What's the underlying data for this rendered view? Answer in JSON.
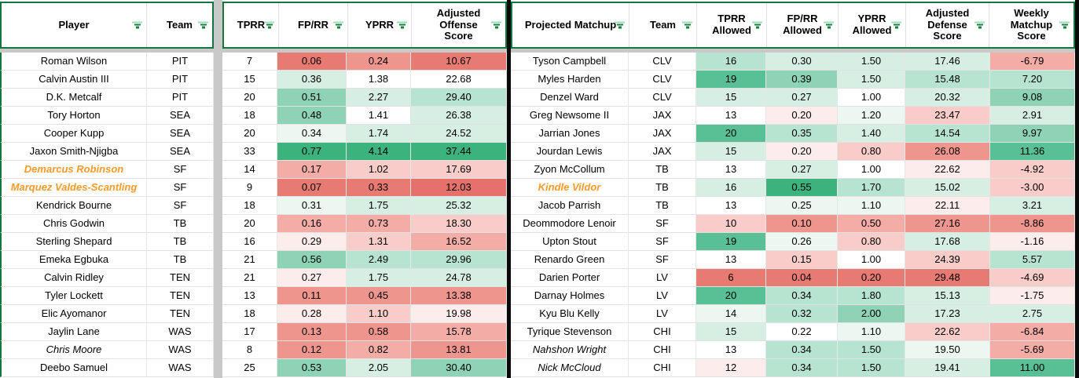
{
  "palette": {
    "R5d": "#e4716a",
    "R5": "#e87b71",
    "R4": "#ee968e",
    "R3": "#f3ada6",
    "R2": "#f8cdc9",
    "R1": "#fceceb",
    "W": "#ffffff",
    "G1": "#edf7f2",
    "G2": "#d7efe3",
    "G3": "#b7e4d0",
    "G4": "#8ed3b5",
    "G5": "#58c094",
    "G6": "#3cb27d",
    "orange_player": "#f79a28",
    "header_border_green": "#15753c",
    "filter_icon_green": "#17813f",
    "black_divider": "#0a0a0a"
  },
  "left_table": {
    "headers": [
      {
        "label": "Player"
      },
      {
        "label": "Team"
      },
      {
        "label": "TPRR"
      },
      {
        "label": "FP/RR"
      },
      {
        "label": "YPRR"
      },
      {
        "label": "Adjusted Offense Score"
      }
    ],
    "rows": [
      {
        "player": "Roman Wilson",
        "style": "normal",
        "team": "PIT",
        "tprr": "7",
        "fprr": {
          "v": "0.06",
          "c": "R5"
        },
        "yprr": {
          "v": "0.24",
          "c": "R4"
        },
        "adj": {
          "v": "10.67",
          "c": "R5"
        }
      },
      {
        "player": "Calvin Austin III",
        "style": "normal",
        "team": "PIT",
        "tprr": "15",
        "fprr": {
          "v": "0.36",
          "c": "G2"
        },
        "yprr": {
          "v": "1.38",
          "c": "W"
        },
        "adj": {
          "v": "22.68",
          "c": "W"
        }
      },
      {
        "player": "D.K. Metcalf",
        "style": "normal",
        "team": "PIT",
        "tprr": "20",
        "fprr": {
          "v": "0.51",
          "c": "G4"
        },
        "yprr": {
          "v": "2.27",
          "c": "G2"
        },
        "adj": {
          "v": "29.40",
          "c": "G3"
        }
      },
      {
        "player": "Tory Horton",
        "style": "normal",
        "team": "SEA",
        "tprr": "18",
        "fprr": {
          "v": "0.48",
          "c": "G4"
        },
        "yprr": {
          "v": "1.41",
          "c": "W"
        },
        "adj": {
          "v": "26.38",
          "c": "G2"
        }
      },
      {
        "player": "Cooper Kupp",
        "style": "normal",
        "team": "SEA",
        "tprr": "20",
        "fprr": {
          "v": "0.34",
          "c": "G1"
        },
        "yprr": {
          "v": "1.74",
          "c": "G2"
        },
        "adj": {
          "v": "24.52",
          "c": "G2"
        }
      },
      {
        "player": "Jaxon Smith-Njigba",
        "style": "normal",
        "team": "SEA",
        "tprr": "33",
        "fprr": {
          "v": "0.77",
          "c": "G6"
        },
        "yprr": {
          "v": "4.14",
          "c": "G6"
        },
        "adj": {
          "v": "37.44",
          "c": "G6"
        }
      },
      {
        "player": "Demarcus Robinson",
        "style": "orange",
        "team": "SF",
        "tprr": "14",
        "fprr": {
          "v": "0.17",
          "c": "R3"
        },
        "yprr": {
          "v": "1.02",
          "c": "R2"
        },
        "adj": {
          "v": "17.69",
          "c": "R2"
        }
      },
      {
        "player": "Marquez Valdes-Scantling",
        "style": "orange",
        "team": "SF",
        "tprr": "9",
        "fprr": {
          "v": "0.07",
          "c": "R5"
        },
        "yprr": {
          "v": "0.33",
          "c": "R5"
        },
        "adj": {
          "v": "12.03",
          "c": "R5d"
        }
      },
      {
        "player": "Kendrick Bourne",
        "style": "normal",
        "team": "SF",
        "tprr": "18",
        "fprr": {
          "v": "0.31",
          "c": "G1"
        },
        "yprr": {
          "v": "1.75",
          "c": "G2"
        },
        "adj": {
          "v": "25.32",
          "c": "G2"
        }
      },
      {
        "player": "Chris Godwin",
        "style": "normal",
        "team": "TB",
        "tprr": "20",
        "fprr": {
          "v": "0.16",
          "c": "R3"
        },
        "yprr": {
          "v": "0.73",
          "c": "R3"
        },
        "adj": {
          "v": "18.30",
          "c": "R2"
        }
      },
      {
        "player": "Sterling Shepard",
        "style": "normal",
        "team": "TB",
        "tprr": "16",
        "fprr": {
          "v": "0.29",
          "c": "R1"
        },
        "yprr": {
          "v": "1.31",
          "c": "R2"
        },
        "adj": {
          "v": "16.52",
          "c": "R3"
        }
      },
      {
        "player": "Emeka Egbuka",
        "style": "normal",
        "team": "TB",
        "tprr": "21",
        "fprr": {
          "v": "0.56",
          "c": "G4"
        },
        "yprr": {
          "v": "2.49",
          "c": "G3"
        },
        "adj": {
          "v": "29.96",
          "c": "G3"
        }
      },
      {
        "player": "Calvin Ridley",
        "style": "normal",
        "team": "TEN",
        "tprr": "21",
        "fprr": {
          "v": "0.27",
          "c": "R1"
        },
        "yprr": {
          "v": "1.75",
          "c": "G2"
        },
        "adj": {
          "v": "24.78",
          "c": "G2"
        }
      },
      {
        "player": "Tyler Lockett",
        "style": "normal",
        "team": "TEN",
        "tprr": "13",
        "fprr": {
          "v": "0.11",
          "c": "R4"
        },
        "yprr": {
          "v": "0.45",
          "c": "R4"
        },
        "adj": {
          "v": "13.38",
          "c": "R4"
        }
      },
      {
        "player": "Elic Ayomanor",
        "style": "normal",
        "team": "TEN",
        "tprr": "18",
        "fprr": {
          "v": "0.28",
          "c": "R1"
        },
        "yprr": {
          "v": "1.10",
          "c": "R2"
        },
        "adj": {
          "v": "19.98",
          "c": "R1"
        }
      },
      {
        "player": "Jaylin Lane",
        "style": "normal",
        "team": "WAS",
        "tprr": "17",
        "fprr": {
          "v": "0.13",
          "c": "R4"
        },
        "yprr": {
          "v": "0.58",
          "c": "R4"
        },
        "adj": {
          "v": "15.78",
          "c": "R3"
        }
      },
      {
        "player": "Chris Moore",
        "style": "italic",
        "team": "WAS",
        "tprr": "8",
        "fprr": {
          "v": "0.12",
          "c": "R4"
        },
        "yprr": {
          "v": "0.82",
          "c": "R3"
        },
        "adj": {
          "v": "13.81",
          "c": "R4"
        }
      },
      {
        "player": "Deebo Samuel",
        "style": "normal",
        "team": "WAS",
        "tprr": "25",
        "fprr": {
          "v": "0.53",
          "c": "G4"
        },
        "yprr": {
          "v": "2.05",
          "c": "G2"
        },
        "adj": {
          "v": "30.40",
          "c": "G4"
        }
      }
    ]
  },
  "right_table": {
    "headers": [
      {
        "label": "Projected Matchup"
      },
      {
        "label": "Team"
      },
      {
        "label": "TPRR Allowed"
      },
      {
        "label": "FP/RR Allowed"
      },
      {
        "label": "YPRR Allowed"
      },
      {
        "label": "Adjusted Defense Score"
      },
      {
        "label": "Weekly Matchup Score"
      }
    ],
    "rows": [
      {
        "name": "Tyson Campbell",
        "style": "normal",
        "team": "CLV",
        "tprr": {
          "v": "16",
          "c": "G3"
        },
        "fprr": {
          "v": "0.30",
          "c": "G2"
        },
        "yprr": {
          "v": "1.50",
          "c": "G2"
        },
        "adj": {
          "v": "17.46",
          "c": "G2"
        },
        "wk": {
          "v": "-6.79",
          "c": "R3"
        }
      },
      {
        "name": "Myles Harden",
        "style": "normal",
        "team": "CLV",
        "tprr": {
          "v": "19",
          "c": "G5"
        },
        "fprr": {
          "v": "0.39",
          "c": "G4"
        },
        "yprr": {
          "v": "1.50",
          "c": "G2"
        },
        "adj": {
          "v": "15.48",
          "c": "G3"
        },
        "wk": {
          "v": "7.20",
          "c": "G3"
        }
      },
      {
        "name": "Denzel Ward",
        "style": "normal",
        "team": "CLV",
        "tprr": {
          "v": "15",
          "c": "G2"
        },
        "fprr": {
          "v": "0.27",
          "c": "G2"
        },
        "yprr": {
          "v": "1.00",
          "c": "W"
        },
        "adj": {
          "v": "20.32",
          "c": "G2"
        },
        "wk": {
          "v": "9.08",
          "c": "G4"
        }
      },
      {
        "name": "Greg Newsome II",
        "style": "normal",
        "team": "JAX",
        "tprr": {
          "v": "13",
          "c": "W"
        },
        "fprr": {
          "v": "0.20",
          "c": "R1"
        },
        "yprr": {
          "v": "1.20",
          "c": "G1"
        },
        "adj": {
          "v": "23.47",
          "c": "R2"
        },
        "wk": {
          "v": "2.91",
          "c": "G2"
        }
      },
      {
        "name": "Jarrian Jones",
        "style": "normal",
        "team": "JAX",
        "tprr": {
          "v": "20",
          "c": "G5"
        },
        "fprr": {
          "v": "0.35",
          "c": "G3"
        },
        "yprr": {
          "v": "1.40",
          "c": "G2"
        },
        "adj": {
          "v": "14.54",
          "c": "G3"
        },
        "wk": {
          "v": "9.97",
          "c": "G4"
        }
      },
      {
        "name": "Jourdan Lewis",
        "style": "normal",
        "team": "JAX",
        "tprr": {
          "v": "15",
          "c": "G2"
        },
        "fprr": {
          "v": "0.20",
          "c": "R1"
        },
        "yprr": {
          "v": "0.80",
          "c": "R2"
        },
        "adj": {
          "v": "26.08",
          "c": "R4"
        },
        "wk": {
          "v": "11.36",
          "c": "G5"
        }
      },
      {
        "name": "Zyon McCollum",
        "style": "normal",
        "team": "TB",
        "tprr": {
          "v": "13",
          "c": "W"
        },
        "fprr": {
          "v": "0.27",
          "c": "G2"
        },
        "yprr": {
          "v": "1.00",
          "c": "W"
        },
        "adj": {
          "v": "22.62",
          "c": "R1"
        },
        "wk": {
          "v": "-4.92",
          "c": "R2"
        }
      },
      {
        "name": "Kindle Vildor",
        "style": "orange",
        "team": "TB",
        "tprr": {
          "v": "16",
          "c": "G2"
        },
        "fprr": {
          "v": "0.55",
          "c": "G6"
        },
        "yprr": {
          "v": "1.70",
          "c": "G3"
        },
        "adj": {
          "v": "15.02",
          "c": "G2"
        },
        "wk": {
          "v": "-3.00",
          "c": "R2"
        }
      },
      {
        "name": "Jacob Parrish",
        "style": "normal",
        "team": "TB",
        "tprr": {
          "v": "13",
          "c": "W"
        },
        "fprr": {
          "v": "0.25",
          "c": "G1"
        },
        "yprr": {
          "v": "1.10",
          "c": "G1"
        },
        "adj": {
          "v": "22.11",
          "c": "R1"
        },
        "wk": {
          "v": "3.21",
          "c": "G2"
        }
      },
      {
        "name": "Deommodore Lenoir",
        "style": "normal",
        "team": "SF",
        "tprr": {
          "v": "10",
          "c": "R2"
        },
        "fprr": {
          "v": "0.10",
          "c": "R4"
        },
        "yprr": {
          "v": "0.50",
          "c": "R3"
        },
        "adj": {
          "v": "27.16",
          "c": "R4"
        },
        "wk": {
          "v": "-8.86",
          "c": "R4"
        }
      },
      {
        "name": "Upton Stout",
        "style": "normal",
        "team": "SF",
        "tprr": {
          "v": "19",
          "c": "G5"
        },
        "fprr": {
          "v": "0.26",
          "c": "G1"
        },
        "yprr": {
          "v": "0.80",
          "c": "R2"
        },
        "adj": {
          "v": "17.68",
          "c": "G2"
        },
        "wk": {
          "v": "-1.16",
          "c": "R1"
        }
      },
      {
        "name": "Renardo Green",
        "style": "normal",
        "team": "SF",
        "tprr": {
          "v": "13",
          "c": "W"
        },
        "fprr": {
          "v": "0.15",
          "c": "R2"
        },
        "yprr": {
          "v": "1.00",
          "c": "W"
        },
        "adj": {
          "v": "24.39",
          "c": "R2"
        },
        "wk": {
          "v": "5.57",
          "c": "G3"
        }
      },
      {
        "name": "Darien Porter",
        "style": "normal",
        "team": "LV",
        "tprr": {
          "v": "6",
          "c": "R5"
        },
        "fprr": {
          "v": "0.04",
          "c": "R5"
        },
        "yprr": {
          "v": "0.20",
          "c": "R5"
        },
        "adj": {
          "v": "29.48",
          "c": "R5"
        },
        "wk": {
          "v": "-4.69",
          "c": "R2"
        }
      },
      {
        "name": "Darnay Holmes",
        "style": "normal",
        "team": "LV",
        "tprr": {
          "v": "20",
          "c": "G5"
        },
        "fprr": {
          "v": "0.34",
          "c": "G3"
        },
        "yprr": {
          "v": "1.80",
          "c": "G3"
        },
        "adj": {
          "v": "15.13",
          "c": "G2"
        },
        "wk": {
          "v": "-1.75",
          "c": "R1"
        }
      },
      {
        "name": "Kyu Blu Kelly",
        "style": "normal",
        "team": "LV",
        "tprr": {
          "v": "14",
          "c": "G1"
        },
        "fprr": {
          "v": "0.32",
          "c": "G3"
        },
        "yprr": {
          "v": "2.00",
          "c": "G4"
        },
        "adj": {
          "v": "17.23",
          "c": "G2"
        },
        "wk": {
          "v": "2.75",
          "c": "G2"
        }
      },
      {
        "name": "Tyrique Stevenson",
        "style": "normal",
        "team": "CHI",
        "tprr": {
          "v": "15",
          "c": "G2"
        },
        "fprr": {
          "v": "0.22",
          "c": "W"
        },
        "yprr": {
          "v": "1.10",
          "c": "G1"
        },
        "adj": {
          "v": "22.62",
          "c": "R2"
        },
        "wk": {
          "v": "-6.84",
          "c": "R3"
        }
      },
      {
        "name": "Nahshon Wright",
        "style": "italic",
        "team": "CHI",
        "tprr": {
          "v": "13",
          "c": "W"
        },
        "fprr": {
          "v": "0.34",
          "c": "G3"
        },
        "yprr": {
          "v": "1.50",
          "c": "G3"
        },
        "adj": {
          "v": "19.50",
          "c": "G1"
        },
        "wk": {
          "v": "-5.69",
          "c": "R3"
        }
      },
      {
        "name": "Nick McCloud",
        "style": "italic",
        "team": "CHI",
        "tprr": {
          "v": "12",
          "c": "R1"
        },
        "fprr": {
          "v": "0.34",
          "c": "G3"
        },
        "yprr": {
          "v": "1.50",
          "c": "G3"
        },
        "adj": {
          "v": "19.41",
          "c": "G2"
        },
        "wk": {
          "v": "11.00",
          "c": "G5"
        }
      }
    ]
  }
}
